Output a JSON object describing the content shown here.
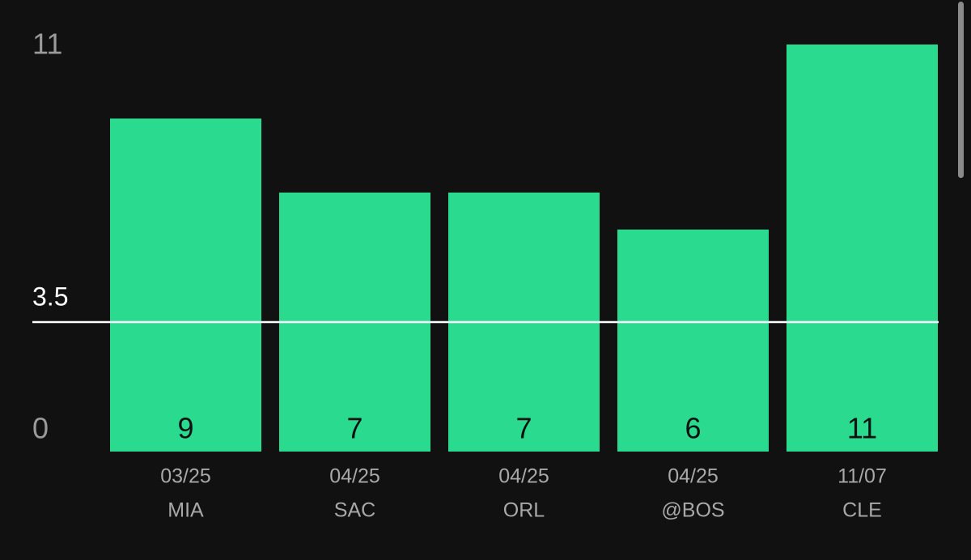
{
  "chart_data": {
    "type": "bar",
    "categories": [
      "03/25",
      "04/25",
      "04/25",
      "04/25",
      "11/07"
    ],
    "opponents": [
      "MIA",
      "SAC",
      "ORL",
      "@BOS",
      "CLE"
    ],
    "values": [
      9,
      7,
      7,
      6,
      11
    ],
    "color": "#2ada8f",
    "ylim": [
      0,
      11
    ],
    "yticks": [
      0,
      11
    ],
    "threshold": 3.5,
    "grid": false
  }
}
